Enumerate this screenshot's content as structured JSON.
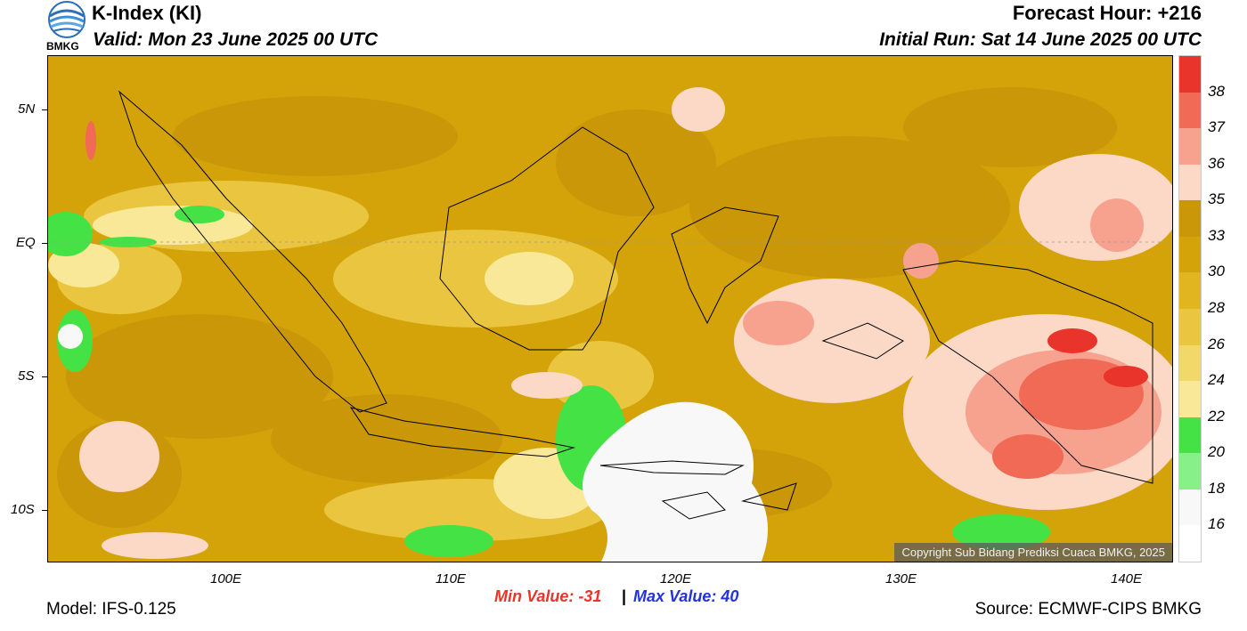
{
  "header": {
    "title": "K-Index (KI)",
    "valid": "Valid: Mon 23 June 2025 00 UTC",
    "forecast_hour": "Forecast Hour: +216",
    "initial_run": "Initial Run: Sat 14 June 2025 00 UTC",
    "logo_text": "BMKG"
  },
  "map": {
    "x_ticks": [
      "100E",
      "110E",
      "120E",
      "130E",
      "140E"
    ],
    "y_ticks": [
      "5N",
      "EQ",
      "5S",
      "10S"
    ],
    "copyright": "Copyright Sub Bidang Prediksi Cuaca BMKG, 2025"
  },
  "colorbar": {
    "labels": [
      "38",
      "37",
      "36",
      "35",
      "33",
      "30",
      "28",
      "26",
      "24",
      "22",
      "20",
      "18",
      "16"
    ],
    "colors": [
      "#e8342a",
      "#f06a55",
      "#f7a28f",
      "#fcd8c6",
      "#c99708",
      "#d4a30a",
      "#e0b520",
      "#eac640",
      "#f2d868",
      "#f8e898",
      "#44e244",
      "#88f088",
      "#f8f8f8"
    ]
  },
  "footer": {
    "model": "Model: IFS-0.125",
    "min_value": "Min Value: -31",
    "separator": "|",
    "max_value": "Max Value:  40",
    "source": "Source: ECMWF-CIPS BMKG"
  },
  "colors": {
    "min_text": "#e8342a",
    "max_text": "#2233dd",
    "base_field": "#d4a30a"
  }
}
